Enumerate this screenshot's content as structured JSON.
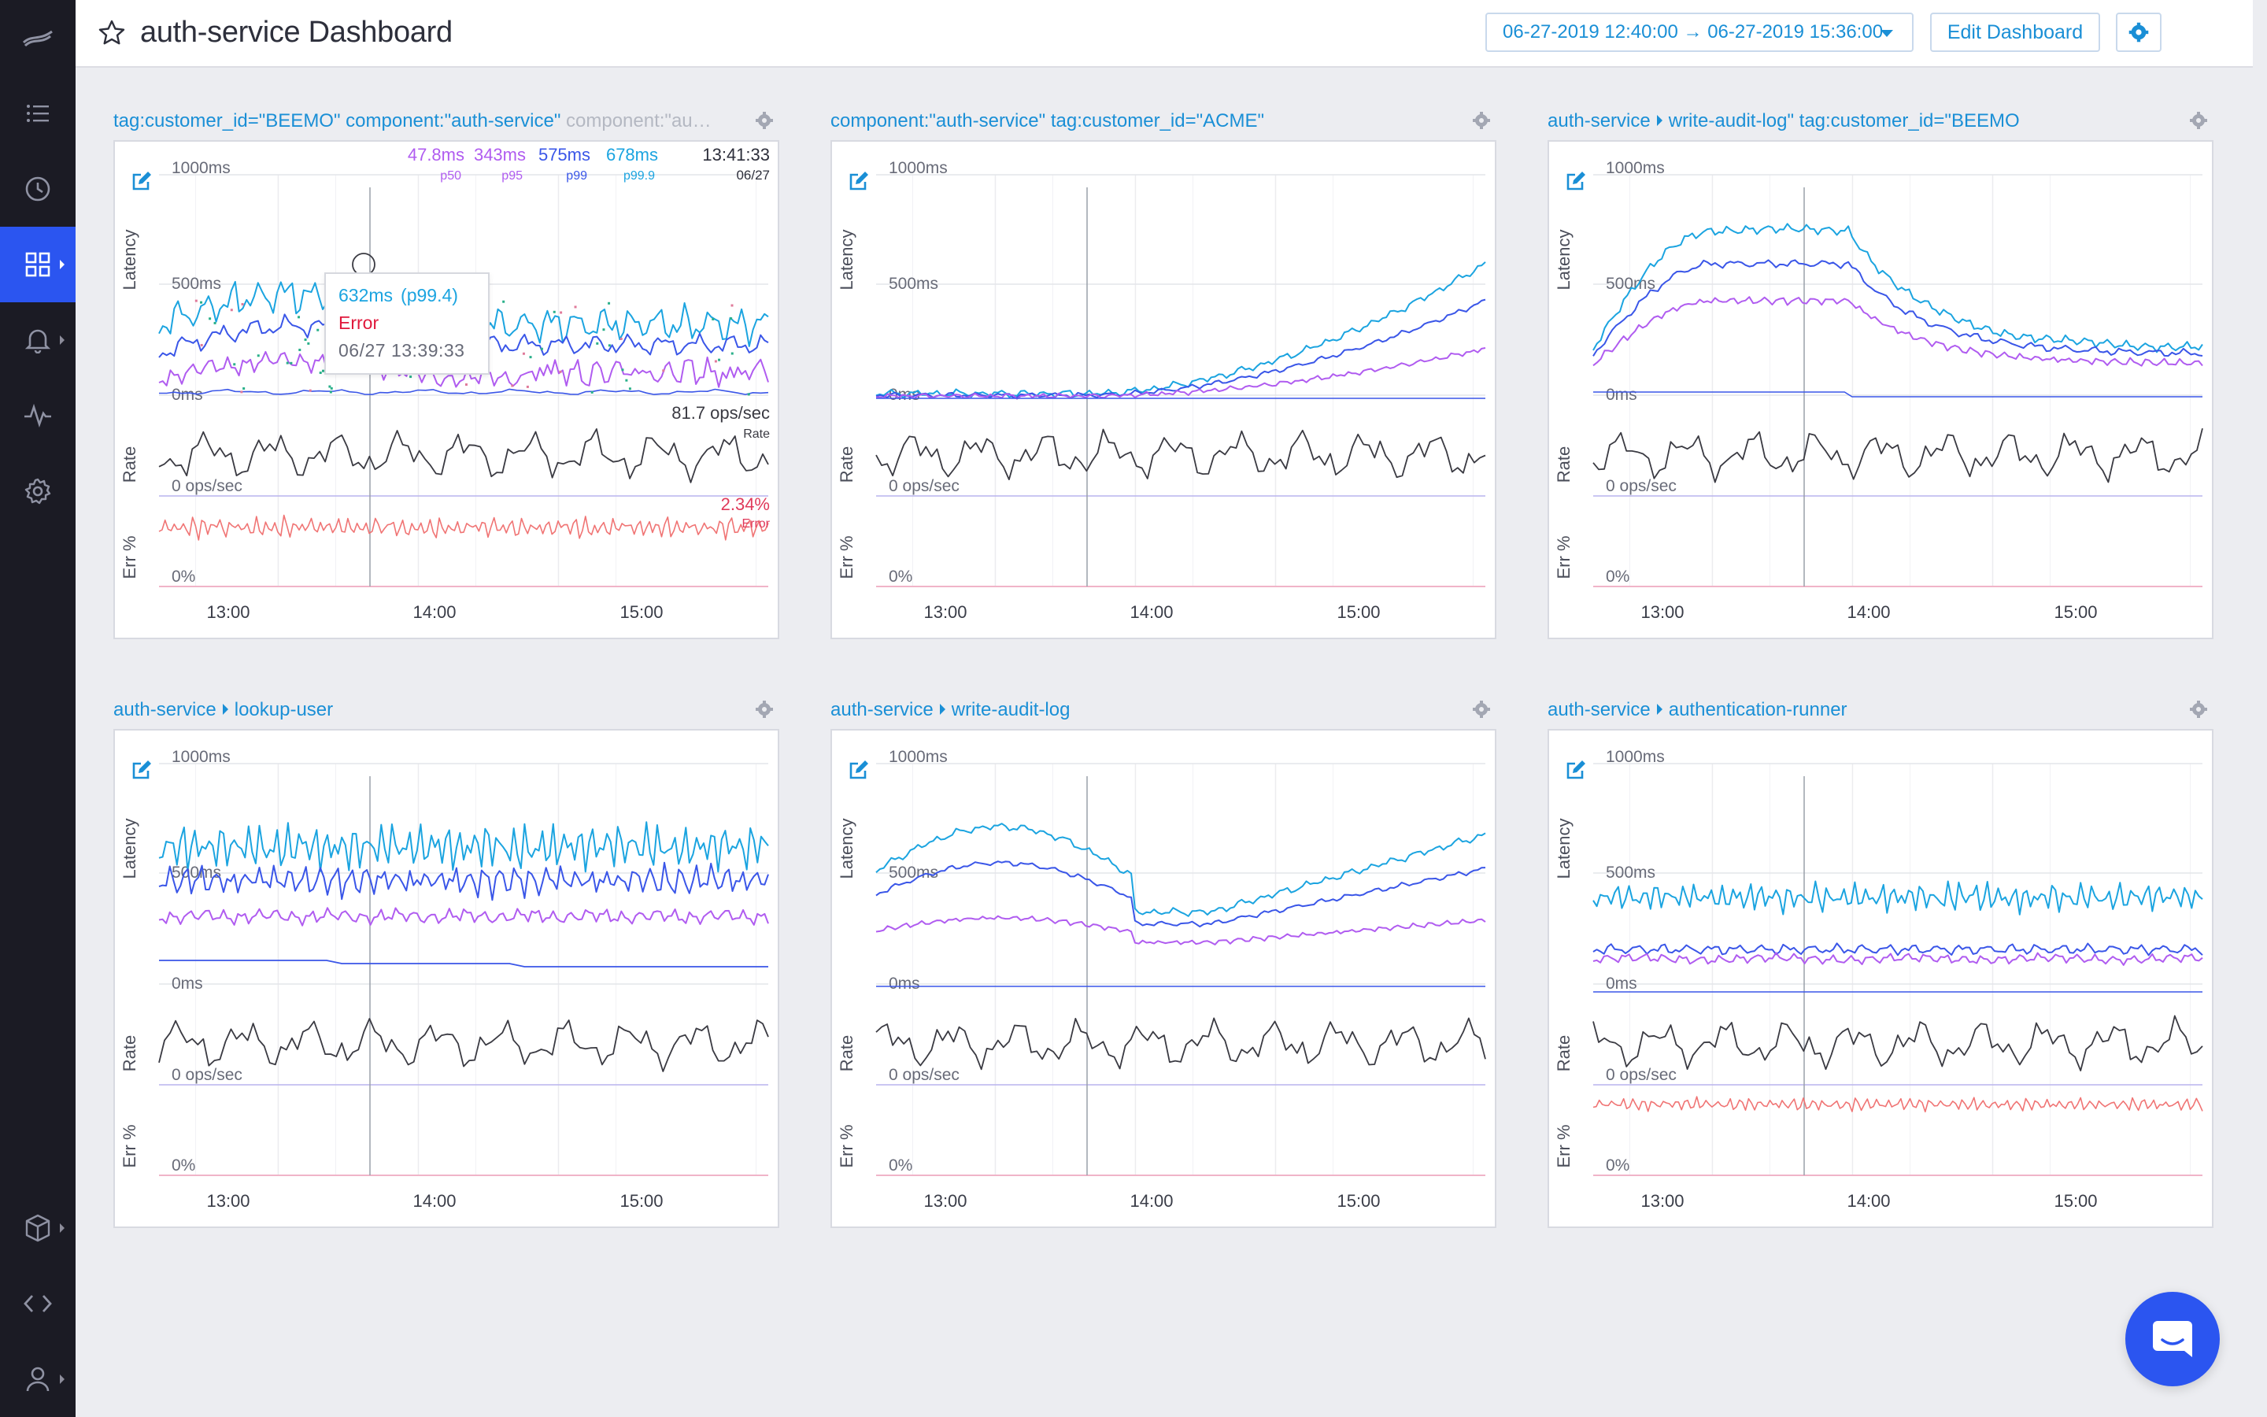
{
  "header": {
    "title": "auth-service Dashboard",
    "date_range": "06-27-2019 12:40:00 → 06-27-2019 15:36:00",
    "edit_label": "Edit Dashboard"
  },
  "sidebar": {
    "items": [
      {
        "name": "logo",
        "icon": "logo-icon"
      },
      {
        "name": "list",
        "icon": "list-icon"
      },
      {
        "name": "history",
        "icon": "clock-icon"
      },
      {
        "name": "dashboards",
        "icon": "grid-icon",
        "active": true
      },
      {
        "name": "alerts",
        "icon": "bell-icon"
      },
      {
        "name": "metrics",
        "icon": "pulse-icon"
      },
      {
        "name": "settings",
        "icon": "gear-icon"
      },
      {
        "name": "packages",
        "icon": "box-icon"
      },
      {
        "name": "api",
        "icon": "code-icon"
      },
      {
        "name": "account",
        "icon": "user-icon"
      }
    ]
  },
  "colors": {
    "p50": "#1ba4e0",
    "p95": "#b05cf0",
    "p99": "#3a56e8",
    "p999": "#1ba4e0",
    "rate": "#3a3a42",
    "error": "#f07474",
    "accent": "#2b55f0"
  },
  "axes": {
    "latency_label": "Latency",
    "rate_label": "Rate",
    "err_label": "Err %",
    "lat_top": "1000ms",
    "lat_mid": "500ms",
    "lat_zero": "0ms",
    "rate_zero": "0 ops/sec",
    "err_zero": "0%",
    "x_ticks": [
      "13:00",
      "14:00",
      "15:00"
    ]
  },
  "panels": [
    {
      "title_parts": [
        {
          "text": "tag:customer_id=\"BEEMO\" component:\"auth-service\" ",
          "faded": false
        },
        {
          "text": "component:\"au…",
          "faded": true
        }
      ],
      "legend": {
        "values": [
          "47.8ms",
          "343ms",
          "575ms",
          "678ms"
        ],
        "labels": [
          "p50",
          "p95",
          "p99",
          "p99.9"
        ],
        "time": "13:41:33",
        "date": "06/27",
        "rate_value": "81.7 ops/sec",
        "rate_label": "Rate",
        "error_value": "2.34%",
        "error_label": "Error"
      },
      "tooltip": {
        "value": "632ms",
        "pct": "(p99.4)",
        "status": "Error",
        "timestamp": "06/27 13:39:33"
      }
    },
    {
      "title_parts": [
        {
          "text": "component:\"auth-service\" tag:customer_id=\"ACME\"",
          "faded": false
        }
      ]
    },
    {
      "title_parts": [
        {
          "text": "auth-service",
          "faded": false
        },
        {
          "text": "write-audit-log\" tag:customer_id=\"BEEMO",
          "faded": false
        }
      ]
    },
    {
      "title_parts": [
        {
          "text": "auth-service",
          "faded": false
        },
        {
          "text": "lookup-user",
          "faded": false
        }
      ]
    },
    {
      "title_parts": [
        {
          "text": "auth-service",
          "faded": false
        },
        {
          "text": "write-audit-log",
          "faded": false
        }
      ]
    },
    {
      "title_parts": [
        {
          "text": "auth-service",
          "faded": false
        },
        {
          "text": "authentication-runner",
          "faded": false
        }
      ]
    }
  ]
}
